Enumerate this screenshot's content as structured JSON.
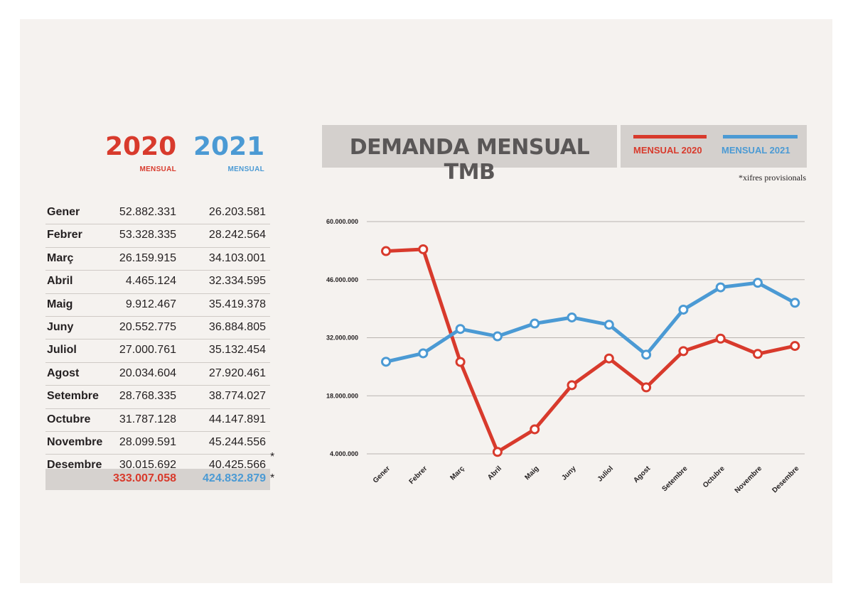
{
  "header": {
    "year_2020": "2020",
    "year_2021": "2021",
    "sub_2020": "MENSUAL",
    "sub_2021": "MENSUAL"
  },
  "table": {
    "rows": [
      {
        "month": "Gener",
        "v2020": "52.882.331",
        "v2021": "26.203.581",
        "star": ""
      },
      {
        "month": "Febrer",
        "v2020": "53.328.335",
        "v2021": "28.242.564",
        "star": ""
      },
      {
        "month": "Març",
        "v2020": "26.159.915",
        "v2021": "34.103.001",
        "star": ""
      },
      {
        "month": "Abril",
        "v2020": "4.465.124",
        "v2021": "32.334.595",
        "star": ""
      },
      {
        "month": "Maig",
        "v2020": "9.912.467",
        "v2021": "35.419.378",
        "star": ""
      },
      {
        "month": "Juny",
        "v2020": "20.552.775",
        "v2021": "36.884.805",
        "star": ""
      },
      {
        "month": "Juliol",
        "v2020": "27.000.761",
        "v2021": "35.132.454",
        "star": ""
      },
      {
        "month": "Agost",
        "v2020": "20.034.604",
        "v2021": "27.920.461",
        "star": ""
      },
      {
        "month": "Setembre",
        "v2020": "28.768.335",
        "v2021": "38.774.027",
        "star": ""
      },
      {
        "month": "Octubre",
        "v2020": "31.787.128",
        "v2021": "44.147.891",
        "star": ""
      },
      {
        "month": "Novembre",
        "v2020": "28.099.591",
        "v2021": "45.244.556",
        "star": ""
      },
      {
        "month": "Desembre",
        "v2020": "30.015.692",
        "v2021": "40.425.566",
        "star": "*"
      }
    ],
    "total_2020": "333.007.058",
    "total_2021": "424.832.879",
    "total_star": "*"
  },
  "title": "DEMANDA MENSUAL TMB",
  "legend": {
    "label_2020": "MENSUAL 2020",
    "label_2021": "MENSUAL 2021"
  },
  "note": "*xifres provisionals",
  "colors": {
    "red": "#d83a2c",
    "blue": "#4b9ad4"
  },
  "chart_data": {
    "type": "line",
    "title": "DEMANDA MENSUAL TMB",
    "categories": [
      "Gener",
      "Febrer",
      "Març",
      "Abril",
      "Maig",
      "Juny",
      "Juliol",
      "Agost",
      "Setembre",
      "Octubre",
      "Novembre",
      "Desembre"
    ],
    "series": [
      {
        "name": "MENSUAL 2020",
        "color": "#d83a2c",
        "values": [
          52882331,
          53328335,
          26159915,
          4465124,
          9912467,
          20552775,
          27000761,
          20034604,
          28768335,
          31787128,
          28099591,
          30015692
        ]
      },
      {
        "name": "MENSUAL 2021",
        "color": "#4b9ad4",
        "values": [
          26203581,
          28242564,
          34103001,
          32334595,
          35419378,
          36884805,
          35132454,
          27920461,
          38774027,
          44147891,
          45244556,
          40425566
        ]
      }
    ],
    "yticks": [
      4000000,
      18000000,
      32000000,
      46000000,
      60000000
    ],
    "ytick_labels": [
      "4.000.000",
      "18.000.000",
      "32.000.000",
      "46.000.000",
      "60.000.000"
    ],
    "ylim": [
      4000000,
      60000000
    ],
    "grid": true,
    "legend_position": "top-right"
  }
}
